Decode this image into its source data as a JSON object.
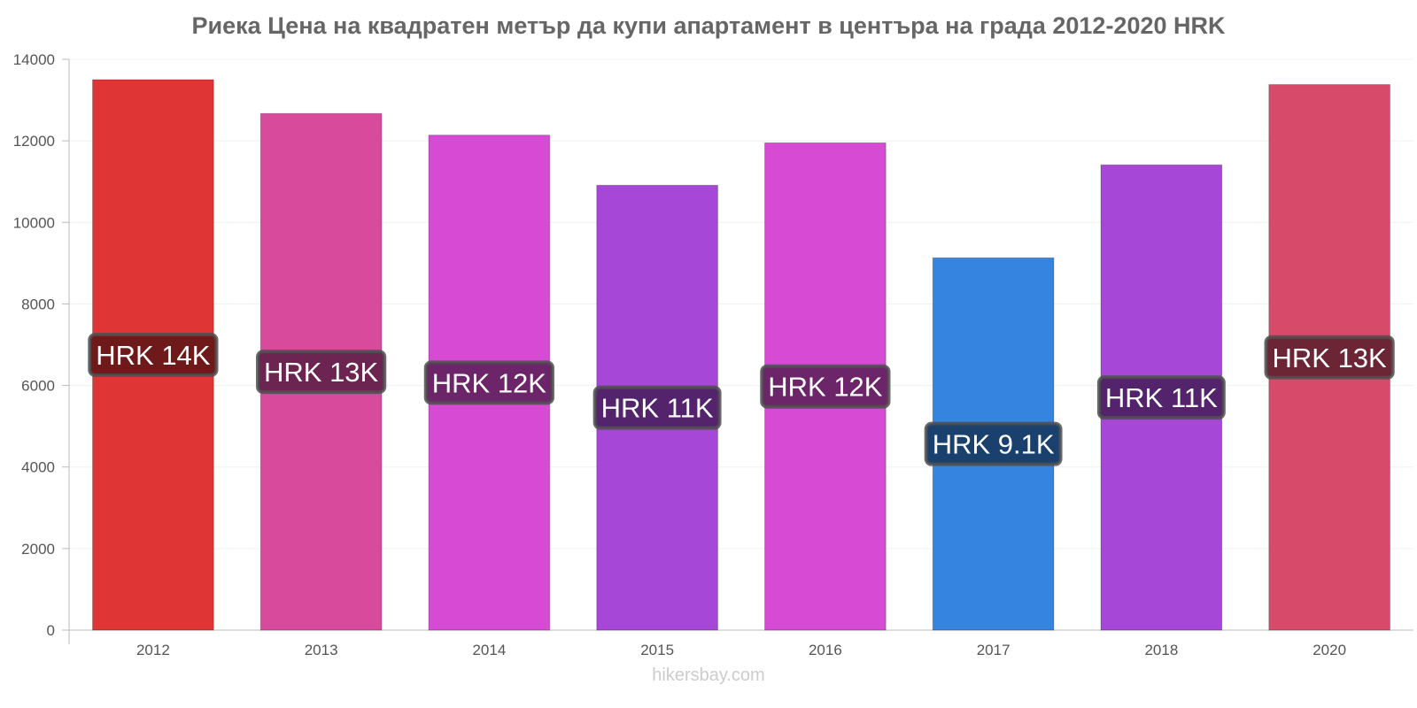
{
  "chart_data": {
    "type": "bar",
    "title": "Риека Цена на квадратен метър да купи апартамент в центъра на града 2012-2020 HRK",
    "xlabel": "",
    "ylabel": "",
    "ylim": [
      0,
      14000
    ],
    "yticks": [
      0,
      2000,
      4000,
      6000,
      8000,
      10000,
      12000,
      14000
    ],
    "categories": [
      "2012",
      "2013",
      "2014",
      "2015",
      "2016",
      "2017",
      "2018",
      "2020"
    ],
    "values": [
      13500,
      12670,
      12140,
      10910,
      11950,
      9130,
      11410,
      13380
    ],
    "data_labels": [
      "HRK 14K",
      "HRK 13K",
      "HRK 12K",
      "HRK 11K",
      "HRK 12K",
      "HRK 9.1K",
      "HRK 11K",
      "HRK 13K"
    ],
    "colors": [
      "#e03535",
      "#d84a9c",
      "#d64ad4",
      "#a647d8",
      "#d64ad4",
      "#3584e0",
      "#a647d8",
      "#d84a6a"
    ],
    "label_bg_colors": [
      "#6e1a1a",
      "#6c2450",
      "#6b2568",
      "#53236b",
      "#6b2568",
      "#1a416e",
      "#53236b",
      "#6c2535"
    ],
    "grid": true
  },
  "watermark": "hikersbay.com"
}
